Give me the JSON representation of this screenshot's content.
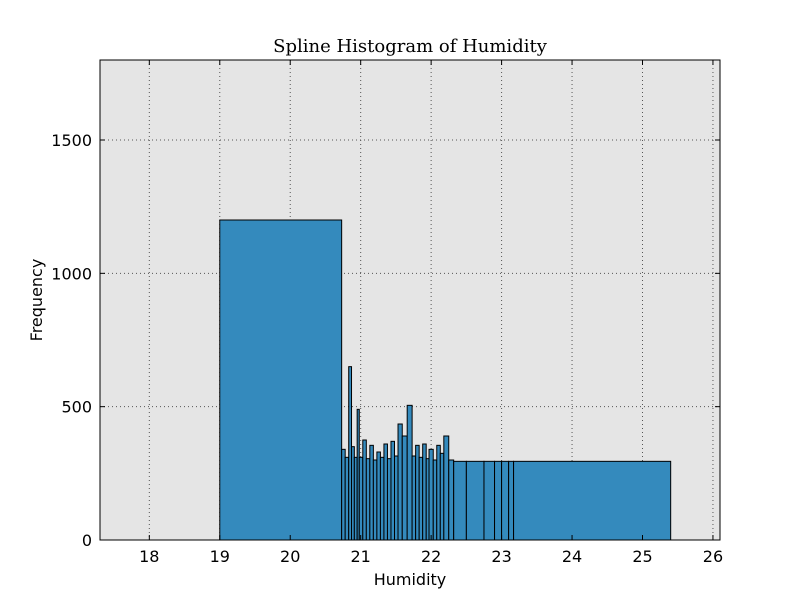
{
  "chart_data": {
    "type": "bar",
    "title": "Spline Histogram of Humidity",
    "xlabel": "Humidity",
    "ylabel": "Frequency",
    "xlim": [
      17.3,
      26.1
    ],
    "ylim": [
      0,
      1800
    ],
    "xticks": [
      18,
      19,
      20,
      21,
      22,
      23,
      24,
      25,
      26
    ],
    "yticks": [
      0,
      500,
      1000,
      1500
    ],
    "grid": true,
    "bar_color": "#348abd",
    "edge_color": "#000000",
    "background_color": "#e5e5e5",
    "bins": [
      {
        "x0": 19.0,
        "x1": 20.73,
        "value": 1200
      },
      {
        "x0": 20.73,
        "x1": 20.78,
        "value": 340
      },
      {
        "x0": 20.78,
        "x1": 20.83,
        "value": 310
      },
      {
        "x0": 20.83,
        "x1": 20.87,
        "value": 650
      },
      {
        "x0": 20.87,
        "x1": 20.91,
        "value": 350
      },
      {
        "x0": 20.91,
        "x1": 20.95,
        "value": 310
      },
      {
        "x0": 20.95,
        "x1": 20.98,
        "value": 490
      },
      {
        "x0": 20.98,
        "x1": 21.03,
        "value": 310
      },
      {
        "x0": 21.03,
        "x1": 21.08,
        "value": 375
      },
      {
        "x0": 21.08,
        "x1": 21.13,
        "value": 305
      },
      {
        "x0": 21.13,
        "x1": 21.18,
        "value": 355
      },
      {
        "x0": 21.18,
        "x1": 21.23,
        "value": 300
      },
      {
        "x0": 21.23,
        "x1": 21.28,
        "value": 330
      },
      {
        "x0": 21.28,
        "x1": 21.33,
        "value": 310
      },
      {
        "x0": 21.33,
        "x1": 21.38,
        "value": 360
      },
      {
        "x0": 21.38,
        "x1": 21.43,
        "value": 305
      },
      {
        "x0": 21.43,
        "x1": 21.48,
        "value": 370
      },
      {
        "x0": 21.48,
        "x1": 21.53,
        "value": 315
      },
      {
        "x0": 21.53,
        "x1": 21.59,
        "value": 435
      },
      {
        "x0": 21.59,
        "x1": 21.66,
        "value": 390
      },
      {
        "x0": 21.66,
        "x1": 21.73,
        "value": 505
      },
      {
        "x0": 21.73,
        "x1": 21.78,
        "value": 315
      },
      {
        "x0": 21.78,
        "x1": 21.83,
        "value": 355
      },
      {
        "x0": 21.83,
        "x1": 21.88,
        "value": 310
      },
      {
        "x0": 21.88,
        "x1": 21.93,
        "value": 360
      },
      {
        "x0": 21.93,
        "x1": 21.97,
        "value": 305
      },
      {
        "x0": 21.97,
        "x1": 22.03,
        "value": 340
      },
      {
        "x0": 22.03,
        "x1": 22.08,
        "value": 300
      },
      {
        "x0": 22.08,
        "x1": 22.13,
        "value": 355
      },
      {
        "x0": 22.13,
        "x1": 22.18,
        "value": 325
      },
      {
        "x0": 22.18,
        "x1": 22.25,
        "value": 390
      },
      {
        "x0": 22.25,
        "x1": 22.32,
        "value": 300
      },
      {
        "x0": 22.32,
        "x1": 22.5,
        "value": 295
      },
      {
        "x0": 22.5,
        "x1": 22.75,
        "value": 295
      },
      {
        "x0": 22.75,
        "x1": 22.9,
        "value": 295
      },
      {
        "x0": 22.9,
        "x1": 23.0,
        "value": 295
      },
      {
        "x0": 23.0,
        "x1": 23.1,
        "value": 295
      },
      {
        "x0": 23.1,
        "x1": 23.17,
        "value": 295
      },
      {
        "x0": 23.17,
        "x1": 25.4,
        "value": 295
      }
    ]
  }
}
